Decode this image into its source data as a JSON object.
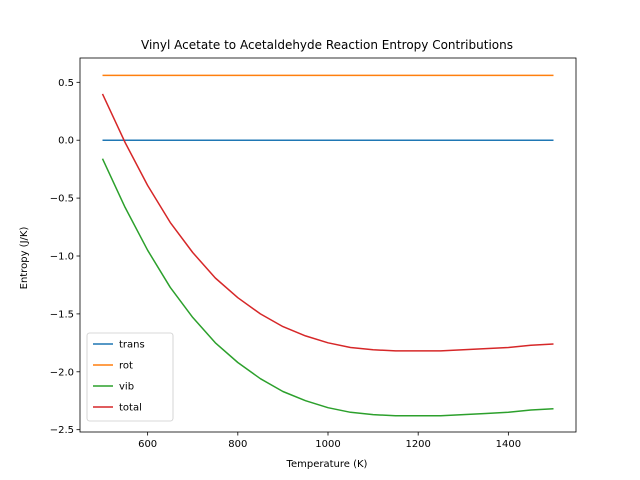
{
  "chart_data": {
    "type": "line",
    "title": "Vinyl Acetate to Acetaldehyde Reaction Entropy Contributions",
    "xlabel": "Temperature (K)",
    "ylabel": "Entropy (J/K)",
    "xlim": [
      450,
      1550
    ],
    "ylim": [
      -2.52,
      0.71
    ],
    "xticks": [
      600,
      800,
      1000,
      1200,
      1400
    ],
    "yticks": [
      0.5,
      0.0,
      -0.5,
      -1.0,
      -1.5,
      -2.0,
      -2.5
    ],
    "xtick_labels": [
      "600",
      "800",
      "1000",
      "1200",
      "1400"
    ],
    "ytick_labels": [
      "0.5",
      "0.0",
      "−0.5",
      "−1.0",
      "−1.5",
      "−2.0",
      "−2.5"
    ],
    "grid": false,
    "legend_position": "lower-left",
    "x": [
      500,
      550,
      600,
      650,
      700,
      750,
      800,
      850,
      900,
      950,
      1000,
      1050,
      1100,
      1150,
      1200,
      1250,
      1300,
      1350,
      1400,
      1450,
      1500
    ],
    "series": [
      {
        "name": "trans",
        "color": "#1f77b4",
        "values": [
          0,
          0,
          0,
          0,
          0,
          0,
          0,
          0,
          0,
          0,
          0,
          0,
          0,
          0,
          0,
          0,
          0,
          0,
          0,
          0,
          0
        ]
      },
      {
        "name": "rot",
        "color": "#ff7f0e",
        "values": [
          0.56,
          0.56,
          0.56,
          0.56,
          0.56,
          0.56,
          0.56,
          0.56,
          0.56,
          0.56,
          0.56,
          0.56,
          0.56,
          0.56,
          0.56,
          0.56,
          0.56,
          0.56,
          0.56,
          0.56,
          0.56
        ]
      },
      {
        "name": "vib",
        "color": "#2ca02c",
        "values": [
          -0.16,
          -0.58,
          -0.95,
          -1.27,
          -1.53,
          -1.75,
          -1.92,
          -2.06,
          -2.17,
          -2.25,
          -2.31,
          -2.35,
          -2.37,
          -2.38,
          -2.38,
          -2.38,
          -2.37,
          -2.36,
          -2.35,
          -2.33,
          -2.32
        ]
      },
      {
        "name": "total",
        "color": "#d62728",
        "values": [
          0.4,
          -0.02,
          -0.39,
          -0.71,
          -0.97,
          -1.19,
          -1.36,
          -1.5,
          -1.61,
          -1.69,
          -1.75,
          -1.79,
          -1.81,
          -1.82,
          -1.82,
          -1.82,
          -1.81,
          -1.8,
          -1.79,
          -1.77,
          -1.76
        ]
      }
    ]
  }
}
